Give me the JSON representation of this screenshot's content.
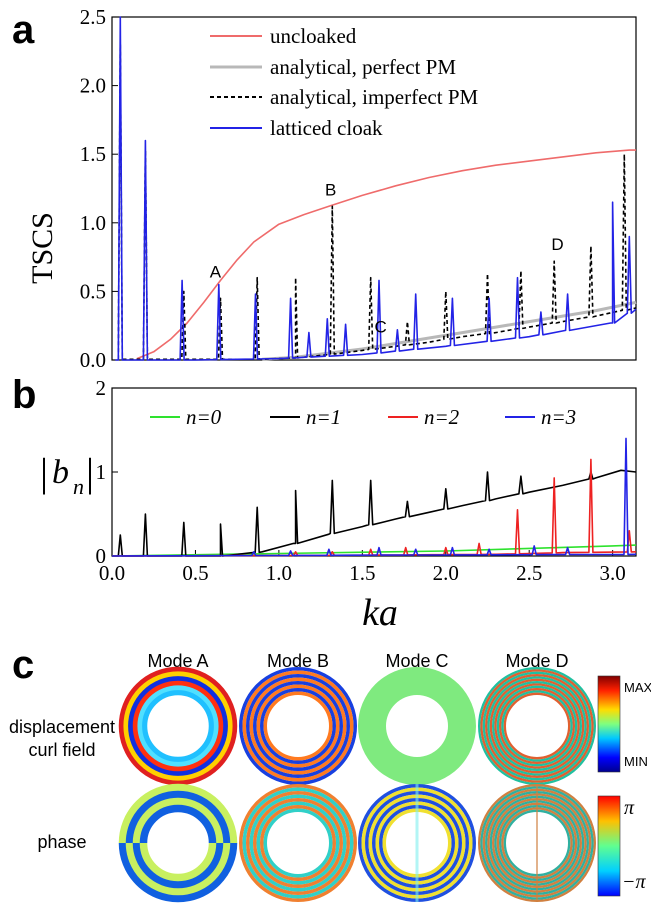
{
  "panels": {
    "a": {
      "letter": "a"
    },
    "b": {
      "letter": "b"
    },
    "c": {
      "letter": "c",
      "modes": [
        "Mode A",
        "Mode B",
        "Mode C",
        "Mode D"
      ],
      "row_labels": {
        "field": [
          "displacement",
          "curl field"
        ],
        "phase": "phase"
      },
      "colorbar_field": {
        "max": "MAX",
        "min": "MIN"
      },
      "colorbar_phase": {
        "max": "π",
        "min": "−π"
      }
    }
  },
  "chart_data": [
    {
      "type": "line",
      "panel": "a",
      "xlabel": "",
      "ylabel": "TSCS",
      "xlim": [
        0,
        3.14
      ],
      "ylim": [
        0,
        2.5
      ],
      "yticks": [
        "0.0",
        "0.5",
        "1.0",
        "1.5",
        "2.0",
        "2.5"
      ],
      "legend_position": "top",
      "legend": [
        "uncloaked",
        "analytical, perfect PM",
        "analytical, imperfect PM",
        "latticed cloak"
      ],
      "colors": {
        "uncloaked": "#ef6b6b",
        "perfect": "#b8b8b8",
        "imperfect": "#000000",
        "latticed": "#2323e6"
      },
      "series": [
        {
          "name": "uncloaked",
          "style": "solid",
          "x": [
            0.15,
            0.25,
            0.35,
            0.45,
            0.55,
            0.65,
            0.75,
            0.85,
            1.0,
            1.15,
            1.3,
            1.5,
            1.7,
            1.9,
            2.1,
            2.3,
            2.5,
            2.7,
            2.9,
            3.1,
            3.14
          ],
          "y": [
            0.01,
            0.06,
            0.15,
            0.27,
            0.42,
            0.58,
            0.73,
            0.86,
            0.99,
            1.06,
            1.12,
            1.2,
            1.27,
            1.33,
            1.38,
            1.42,
            1.45,
            1.48,
            1.51,
            1.53,
            1.53
          ]
        },
        {
          "name": "analytical, perfect PM",
          "style": "solid",
          "x": [
            0.9,
            1.1,
            1.3,
            1.5,
            1.7,
            1.9,
            2.1,
            2.3,
            2.5,
            2.7,
            2.9,
            3.14
          ],
          "y": [
            0.005,
            0.02,
            0.05,
            0.08,
            0.12,
            0.16,
            0.2,
            0.24,
            0.28,
            0.32,
            0.36,
            0.42
          ]
        },
        {
          "name": "analytical, imperfect PM",
          "style": "dashed",
          "x": [
            0.9,
            1.1,
            1.3,
            1.5,
            1.7,
            1.9,
            2.1,
            2.3,
            2.5,
            2.7,
            2.9,
            3.14
          ],
          "y": [
            0.005,
            0.015,
            0.04,
            0.07,
            0.1,
            0.13,
            0.17,
            0.2,
            0.24,
            0.28,
            0.32,
            0.38
          ],
          "spikes": [
            [
              0.05,
              2.3
            ],
            [
              0.2,
              1.53
            ],
            [
              0.43,
              0.5
            ],
            [
              0.65,
              0.45
            ],
            [
              0.87,
              0.6
            ],
            [
              1.1,
              0.6
            ],
            [
              1.32,
              1.12
            ],
            [
              1.55,
              0.6
            ],
            [
              1.77,
              0.28
            ],
            [
              2.0,
              0.5
            ],
            [
              2.25,
              0.63
            ],
            [
              2.45,
              0.65
            ],
            [
              2.65,
              0.72
            ],
            [
              2.87,
              0.83
            ],
            [
              3.07,
              1.5
            ]
          ]
        },
        {
          "name": "latticed cloak",
          "style": "solid",
          "x": [
            0.02,
            0.5,
            1.0,
            1.5,
            2.0,
            2.5,
            3.0,
            3.14
          ],
          "y": [
            0.0,
            0.0,
            0.01,
            0.04,
            0.1,
            0.17,
            0.27,
            0.37
          ],
          "spikes": [
            [
              0.05,
              2.5
            ],
            [
              0.2,
              1.6
            ],
            [
              0.42,
              0.58
            ],
            [
              0.64,
              0.55
            ],
            [
              0.86,
              0.48
            ],
            [
              1.07,
              0.45
            ],
            [
              1.18,
              0.2
            ],
            [
              1.29,
              0.3
            ],
            [
              1.4,
              0.26
            ],
            [
              1.6,
              0.58
            ],
            [
              1.71,
              0.22
            ],
            [
              1.82,
              0.48
            ],
            [
              2.04,
              0.45
            ],
            [
              2.26,
              0.45
            ],
            [
              2.43,
              0.6
            ],
            [
              2.57,
              0.35
            ],
            [
              2.73,
              0.48
            ],
            [
              3.0,
              1.15
            ],
            [
              3.1,
              0.9
            ]
          ]
        }
      ],
      "annotations": [
        {
          "text": "A",
          "x": 0.62,
          "y": 0.6
        },
        {
          "text": "B",
          "x": 1.31,
          "y": 1.2
        },
        {
          "text": "C",
          "x": 1.61,
          "y": 0.2
        },
        {
          "text": "D",
          "x": 2.67,
          "y": 0.8
        }
      ]
    },
    {
      "type": "line",
      "panel": "b",
      "xlabel": "ka",
      "ylabel": "|bn|",
      "xlim": [
        0,
        3.14
      ],
      "ylim": [
        0,
        2
      ],
      "xticks": [
        "0.0",
        "0.5",
        "1.0",
        "1.5",
        "2.0",
        "2.5",
        "3.0"
      ],
      "yticks": [
        "0",
        "1",
        "2"
      ],
      "legend_position": "top",
      "legend": [
        "n=0",
        "n=1",
        "n=2",
        "n=3"
      ],
      "colors": {
        "n0": "#2ee22e",
        "n1": "#000000",
        "n2": "#ee2222",
        "n3": "#2323e6"
      },
      "series": [
        {
          "name": "n=0",
          "x": [
            0.0,
            1.0,
            2.0,
            2.5,
            3.0,
            3.14
          ],
          "y": [
            0.0,
            0.03,
            0.06,
            0.09,
            0.12,
            0.13
          ]
        },
        {
          "name": "n=1",
          "x": [
            0.0,
            0.65,
            0.9,
            1.1,
            1.3,
            1.5,
            1.7,
            1.9,
            2.1,
            2.3,
            2.5,
            2.7,
            2.9,
            3.05,
            3.14
          ],
          "y": [
            0.0,
            0.0,
            0.05,
            0.15,
            0.26,
            0.35,
            0.44,
            0.52,
            0.6,
            0.68,
            0.76,
            0.84,
            0.93,
            1.02,
            1.0
          ],
          "spikes": [
            [
              0.05,
              0.25
            ],
            [
              0.2,
              0.5
            ],
            [
              0.43,
              0.4
            ],
            [
              0.65,
              0.38
            ],
            [
              0.87,
              0.58
            ],
            [
              1.1,
              0.78
            ],
            [
              1.32,
              0.9
            ],
            [
              1.55,
              0.9
            ],
            [
              1.77,
              0.65
            ],
            [
              2.0,
              0.8
            ],
            [
              2.25,
              1.0
            ],
            [
              2.45,
              0.95
            ],
            [
              2.87,
              1.0
            ]
          ]
        },
        {
          "name": "n=2",
          "x": [
            0.0,
            1.5,
            2.3,
            2.7,
            3.14
          ],
          "y": [
            0.0,
            0.01,
            0.02,
            0.04,
            0.05
          ],
          "spikes": [
            [
              1.1,
              0.05
            ],
            [
              1.32,
              0.05
            ],
            [
              1.55,
              0.08
            ],
            [
              1.76,
              0.1
            ],
            [
              2.0,
              0.1
            ],
            [
              2.2,
              0.15
            ],
            [
              2.43,
              0.55
            ],
            [
              2.65,
              0.93
            ],
            [
              2.87,
              1.15
            ],
            [
              3.1,
              0.3
            ]
          ]
        },
        {
          "name": "n=3",
          "x": [
            0.0,
            3.14
          ],
          "y": [
            0.0,
            0.02
          ],
          "spikes": [
            [
              0.85,
              0.05
            ],
            [
              1.07,
              0.06
            ],
            [
              1.3,
              0.08
            ],
            [
              1.6,
              0.1
            ],
            [
              1.82,
              0.08
            ],
            [
              2.04,
              0.1
            ],
            [
              2.26,
              0.08
            ],
            [
              2.53,
              0.12
            ],
            [
              2.73,
              0.1
            ],
            [
              3.08,
              1.4
            ]
          ]
        }
      ]
    }
  ]
}
